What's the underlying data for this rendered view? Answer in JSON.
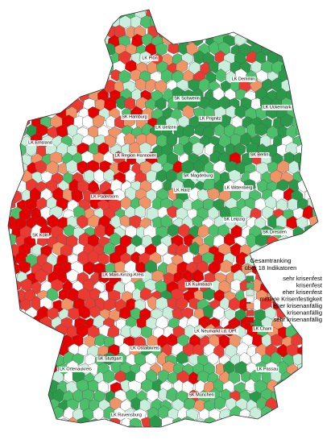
{
  "legend": {
    "title": [
      "Gesamtranking",
      "über 18 Indikatoren"
    ],
    "items": [
      {
        "label": "sehr krisenfest",
        "color": "#2a9a4a"
      },
      {
        "label": "krisenfest",
        "color": "#4cbf6b"
      },
      {
        "label": "eher krisenfest",
        "color": "#c9eedb"
      },
      {
        "label": "mittlere Krisenfestigkeit",
        "color": "#ffffff"
      },
      {
        "label": "eher krisenanfällig",
        "color": "#f09468"
      },
      {
        "label": "krisenanfällig",
        "color": "#ea3a32"
      },
      {
        "label": "sehr krisenanfällig",
        "color": "#e50000"
      }
    ]
  },
  "labels": [
    "LK Plön",
    "LK Demmin",
    "SK Schwerin",
    "LK Uckermark",
    "SK Hamburg",
    "LK Prignitz",
    "LK Uelzen",
    "LK Emsland",
    "LK Region Hannover",
    "SK Berlin",
    "SK Magdeburg",
    "LK Wittenberg",
    "LK Harz",
    "LK Paderborn",
    "SK Leipzig",
    "SK Köln",
    "SK Dresden",
    "LK Main-Kinzig-Kreis",
    "LK Kulmbach",
    "LK Neumarkt i.d. OPf.",
    "LK Cham",
    "LK Ostalbkreis",
    "SK Stuttgart",
    "LK Ortenaukreis",
    "LK Passau",
    "SK München",
    "LK Ravensburg"
  ]
}
